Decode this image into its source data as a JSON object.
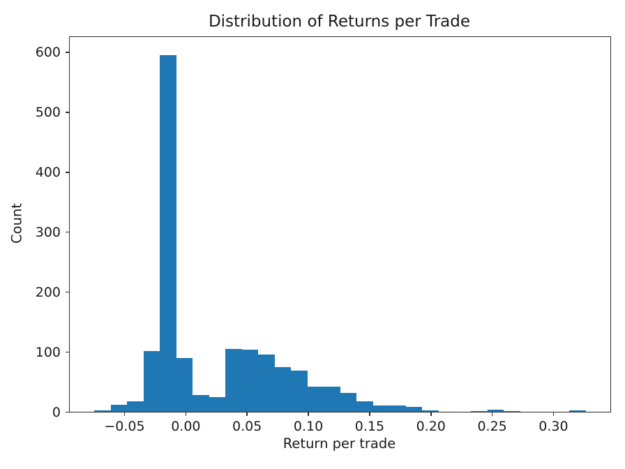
{
  "chart_data": {
    "type": "bar",
    "subtype": "histogram",
    "title": "Distribution of Returns per Trade",
    "xlabel": "Return per trade",
    "ylabel": "Count",
    "bar_color": "#1f77b4",
    "axis_color": "#2b2b2b",
    "text_color": "#1a1a1a",
    "grid": false,
    "legend_position": "none",
    "xlim": [
      -0.0944,
      0.3467
    ],
    "ylim": [
      0,
      625
    ],
    "x_ticks": [
      {
        "value": -0.05,
        "label": "−0.05"
      },
      {
        "value": 0.0,
        "label": "0.00"
      },
      {
        "value": 0.05,
        "label": "0.05"
      },
      {
        "value": 0.1,
        "label": "0.10"
      },
      {
        "value": 0.15,
        "label": "0.15"
      },
      {
        "value": 0.2,
        "label": "0.20"
      },
      {
        "value": 0.25,
        "label": "0.25"
      },
      {
        "value": 0.3,
        "label": "0.30"
      }
    ],
    "y_ticks": [
      {
        "value": 0,
        "label": "0"
      },
      {
        "value": 100,
        "label": "100"
      },
      {
        "value": 200,
        "label": "200"
      },
      {
        "value": 300,
        "label": "300"
      },
      {
        "value": 400,
        "label": "400"
      },
      {
        "value": 500,
        "label": "500"
      },
      {
        "value": 600,
        "label": "600"
      }
    ],
    "bins": {
      "start": -0.0743,
      "bin_width": 0.01336,
      "counts": [
        2,
        12,
        17,
        101,
        595,
        90,
        28,
        25,
        105,
        104,
        95,
        75,
        69,
        42,
        42,
        32,
        18,
        10,
        10,
        8,
        2,
        0,
        0,
        1,
        3,
        1,
        0,
        0,
        0,
        2
      ]
    }
  }
}
